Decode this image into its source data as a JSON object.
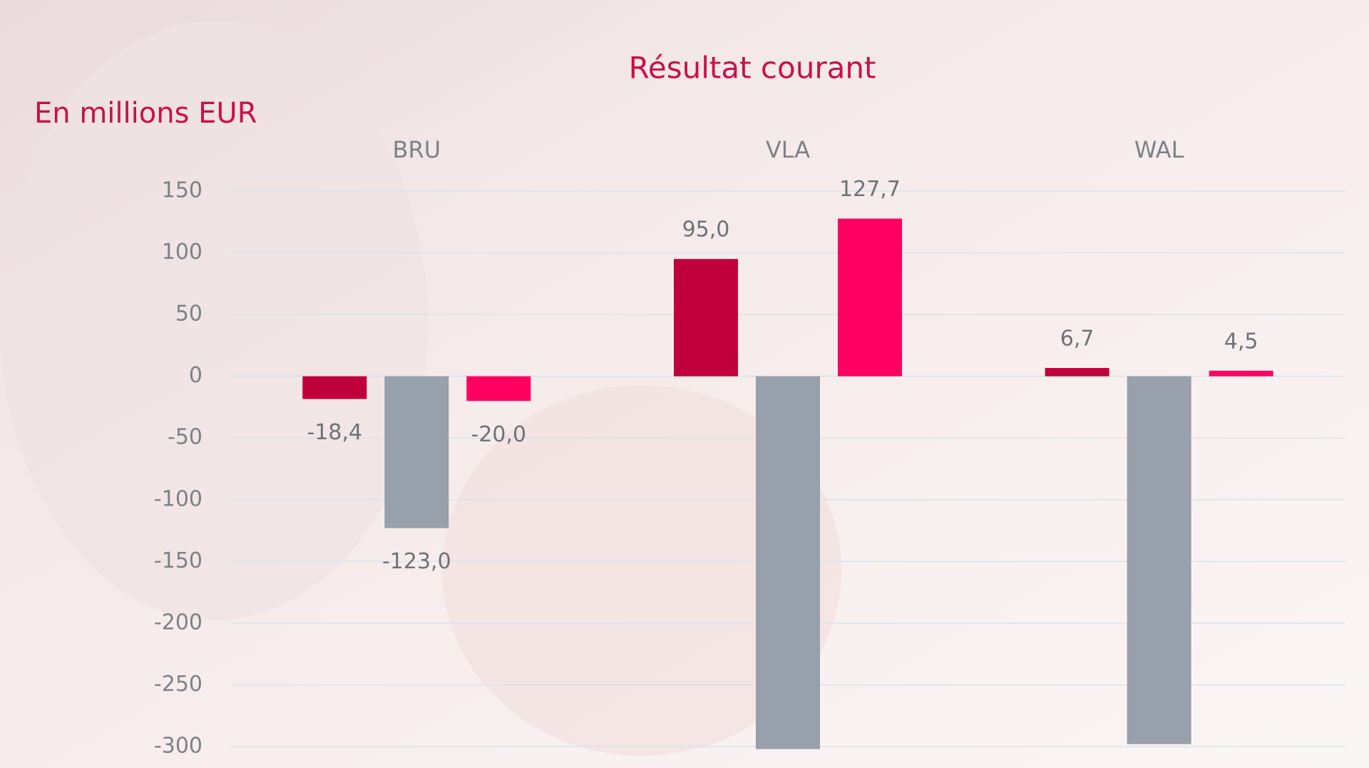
{
  "chart_data": {
    "type": "bar",
    "title": "Résultat courant",
    "y_label": "En millions EUR",
    "categories": [
      "BRU",
      "VLA",
      "WAL"
    ],
    "series": [
      {
        "color": "#c0003c",
        "values": [
          -18.4,
          95.0,
          6.7
        ],
        "value_labels": [
          "-18,4",
          "95,0",
          "6,7"
        ]
      },
      {
        "color": "#98a0ab",
        "values": [
          -123.0,
          -302,
          -298
        ],
        "value_labels": [
          "-123,0",
          null,
          null
        ]
      },
      {
        "color": "#ff0060",
        "values": [
          -20.0,
          127.7,
          4.5
        ],
        "value_labels": [
          "-20,0",
          "127,7",
          "4,5"
        ]
      }
    ],
    "ylim": [
      -300,
      150
    ],
    "yticks": [
      150,
      100,
      50,
      0,
      -50,
      -100,
      -150,
      -200,
      -250,
      -300
    ],
    "grid": true
  }
}
